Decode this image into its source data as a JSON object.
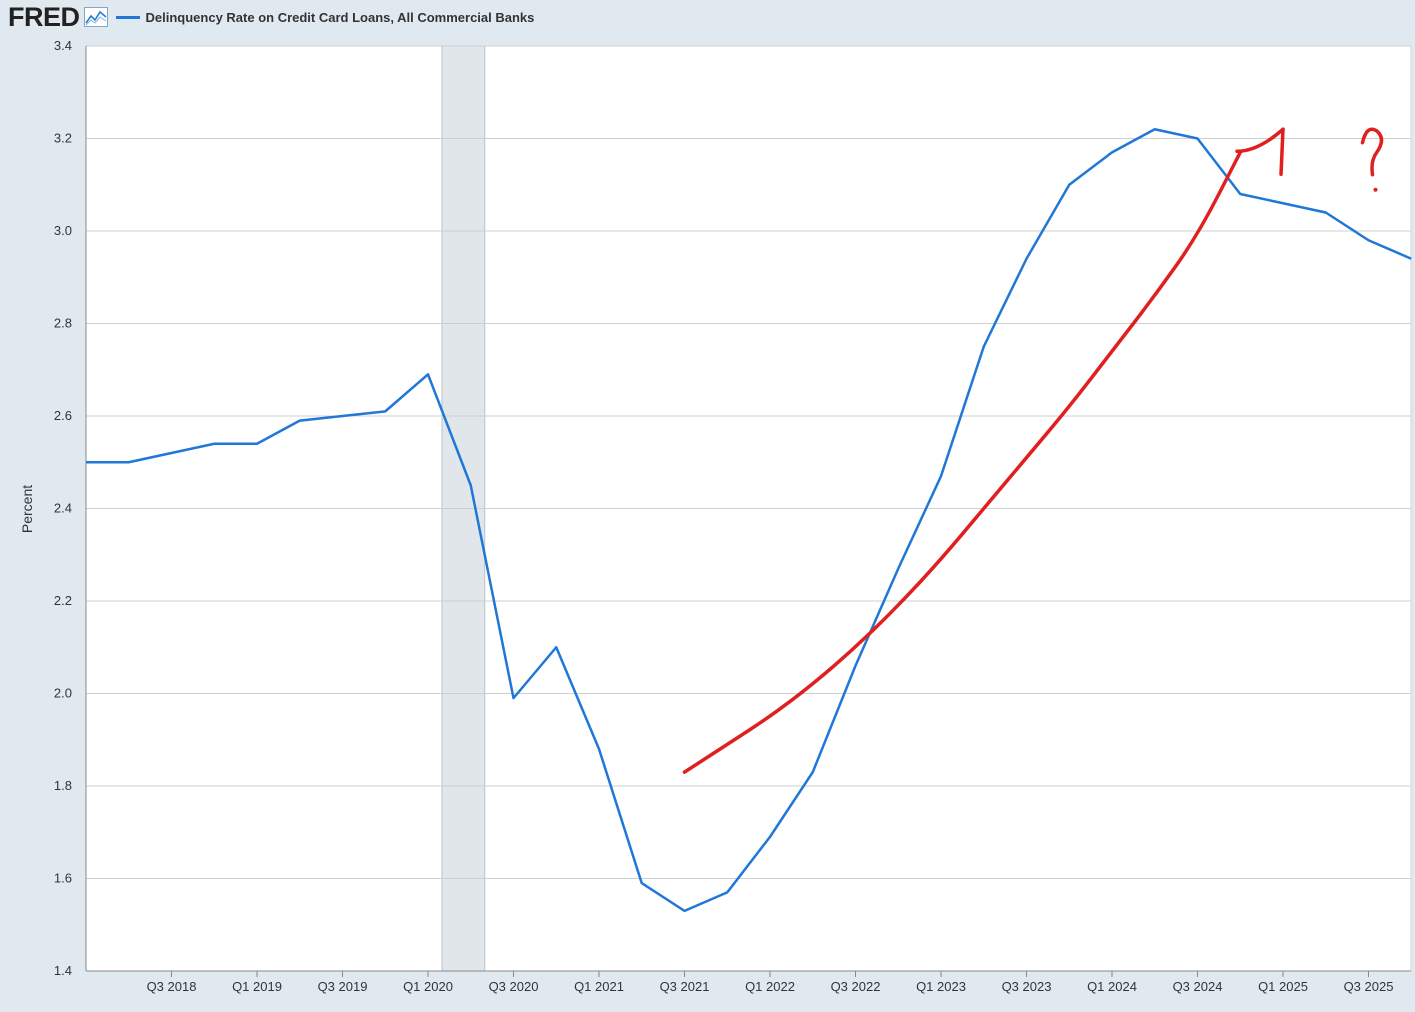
{
  "header": {
    "logo_text": "FRED",
    "series_title": "Delinquency Rate on Credit Card Loans, All Commercial Banks"
  },
  "colors": {
    "series": "#1f77d8",
    "annotation": "#e02020",
    "recession": "#e1e6eb",
    "grid": "#cfcfcf",
    "background": "#e1e9f0"
  },
  "chart_data": {
    "type": "line",
    "title": "Delinquency Rate on Credit Card Loans, All Commercial Banks",
    "ylabel": "Percent",
    "xlabel": "",
    "ylim": [
      1.4,
      3.4
    ],
    "yticks": [
      "1.4",
      "1.6",
      "1.8",
      "2.0",
      "2.2",
      "2.4",
      "2.6",
      "2.8",
      "3.0",
      "3.2",
      "3.4"
    ],
    "xticks": [
      "Q3 2018",
      "Q1 2019",
      "Q3 2019",
      "Q1 2020",
      "Q3 2020",
      "Q1 2021",
      "Q3 2021",
      "Q1 2022",
      "Q3 2022",
      "Q1 2023",
      "Q3 2023",
      "Q1 2024",
      "Q3 2024",
      "Q1 2025",
      "Q3 2025"
    ],
    "grid": true,
    "recession_shading": [
      "Q1 2020",
      "Q2 2020"
    ],
    "series": [
      {
        "name": "Delinquency Rate on Credit Card Loans, All Commercial Banks",
        "x": [
          "Q1 2018",
          "Q2 2018",
          "Q3 2018",
          "Q4 2018",
          "Q1 2019",
          "Q2 2019",
          "Q3 2019",
          "Q4 2019",
          "Q1 2020",
          "Q2 2020",
          "Q3 2020",
          "Q4 2020",
          "Q1 2021",
          "Q2 2021",
          "Q3 2021",
          "Q4 2021",
          "Q1 2022",
          "Q2 2022",
          "Q3 2022",
          "Q4 2022",
          "Q1 2023",
          "Q2 2023",
          "Q3 2023",
          "Q4 2023",
          "Q1 2024",
          "Q2 2024",
          "Q3 2024",
          "Q4 2024",
          "Q1 2025",
          "Q2 2025",
          "Q3 2025",
          "Q4 2025"
        ],
        "values": [
          2.5,
          2.5,
          2.52,
          2.54,
          2.54,
          2.59,
          2.6,
          2.61,
          2.69,
          2.45,
          1.99,
          2.1,
          1.88,
          1.59,
          1.53,
          1.57,
          1.69,
          1.83,
          2.06,
          2.27,
          2.47,
          2.75,
          2.94,
          3.1,
          3.17,
          3.22,
          3.2,
          3.08,
          3.06,
          3.04,
          2.98,
          2.94
        ]
      }
    ],
    "annotations": [
      {
        "type": "hand-drawn-trend-line",
        "x": [
          "Q3 2021",
          "Q4 2021",
          "Q1 2022",
          "Q2 2022",
          "Q3 2022",
          "Q4 2022",
          "Q1 2023",
          "Q2 2023",
          "Q3 2023",
          "Q4 2023",
          "Q1 2024",
          "Q2 2024",
          "Q3 2024",
          "Q4 2024"
        ],
        "values": [
          1.83,
          1.89,
          1.95,
          2.02,
          2.1,
          2.19,
          2.29,
          2.4,
          2.51,
          2.62,
          2.74,
          2.86,
          2.99,
          3.17
        ]
      },
      {
        "type": "hand-drawn-arrow",
        "x": "Q1 2025",
        "y": 3.22
      },
      {
        "type": "hand-drawn-question-mark",
        "x": "Q3 2025",
        "y": 3.1
      }
    ]
  }
}
